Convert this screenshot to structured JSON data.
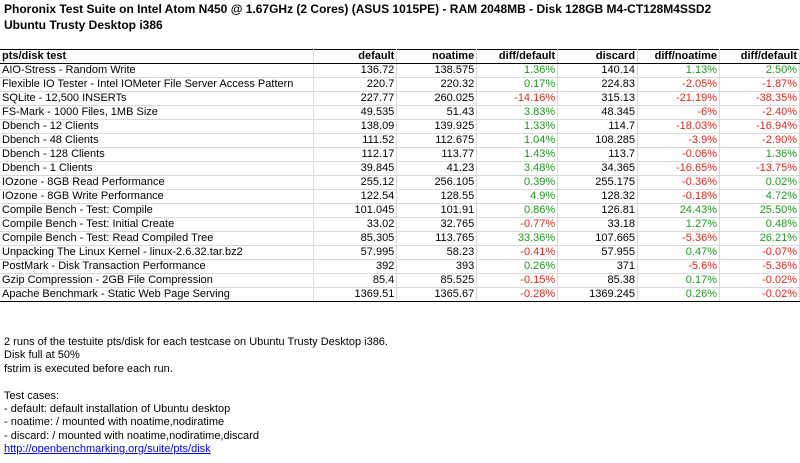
{
  "title_line1": "Phoronix Test Suite on Intel Atom N450 @ 1.67GHz (2 Cores) (ASUS 1015PE) - RAM 2048MB - Disk 128GB M4-CT128M4SSD2",
  "title_line2": "Ubuntu Trusty Desktop i386",
  "colors": {
    "positive": "#1a9a1a",
    "negative": "#e0251b",
    "link": "#0000ee",
    "grid": "#d9d9d9"
  },
  "table": {
    "headers": [
      "pts/disk test",
      "default",
      "noatime",
      "diff/default",
      "discard",
      "diff/noatime",
      "diff/default"
    ],
    "rows": [
      {
        "test": "AIO-Stress - Random Write",
        "default": "136.72",
        "noatime": "138.575",
        "diff1": "1.36%",
        "diff1_sign": "pos",
        "discard": "140.14",
        "diff2": "1.13%",
        "diff2_sign": "pos",
        "diff3": "2.50%",
        "diff3_sign": "pos"
      },
      {
        "test": "Flexible IO Tester - Intel IOMeter File Server Access Pattern",
        "default": "220.7",
        "noatime": "220.32",
        "diff1": "0.17%",
        "diff1_sign": "pos",
        "discard": "224.83",
        "diff2": "-2.05%",
        "diff2_sign": "neg",
        "diff3": "-1.87%",
        "diff3_sign": "neg"
      },
      {
        "test": "SQLite - 12,500 INSERTs",
        "default": "227.77",
        "noatime": "260.025",
        "diff1": "-14.16%",
        "diff1_sign": "neg",
        "discard": "315.13",
        "diff2": "-21.19%",
        "diff2_sign": "neg",
        "diff3": "-38.35%",
        "diff3_sign": "neg"
      },
      {
        "test": "FS-Mark - 1000 Files, 1MB Size",
        "default": "49.535",
        "noatime": "51.43",
        "diff1": "3.83%",
        "diff1_sign": "pos",
        "discard": "48.345",
        "diff2": "-6%",
        "diff2_sign": "neg",
        "diff3": "-2.40%",
        "diff3_sign": "neg"
      },
      {
        "test": "Dbench - 12 Clients",
        "default": "138.09",
        "noatime": "139.925",
        "diff1": "1.33%",
        "diff1_sign": "pos",
        "discard": "114.7",
        "diff2": "-18.03%",
        "diff2_sign": "neg",
        "diff3": "-16.94%",
        "diff3_sign": "neg"
      },
      {
        "test": "Dbench - 48 Clients",
        "default": "111.52",
        "noatime": "112.675",
        "diff1": "1.04%",
        "diff1_sign": "pos",
        "discard": "108.285",
        "diff2": "-3.9%",
        "diff2_sign": "neg",
        "diff3": "-2.90%",
        "diff3_sign": "neg"
      },
      {
        "test": "Dbench - 128 Clients",
        "default": "112.17",
        "noatime": "113.77",
        "diff1": "1.43%",
        "diff1_sign": "pos",
        "discard": "113.7",
        "diff2": "-0.06%",
        "diff2_sign": "neg",
        "diff3": "1.36%",
        "diff3_sign": "pos"
      },
      {
        "test": "Dbench - 1 Clients",
        "default": "39.845",
        "noatime": "41.23",
        "diff1": "3.48%",
        "diff1_sign": "pos",
        "discard": "34.365",
        "diff2": "-16.65%",
        "diff2_sign": "neg",
        "diff3": "-13.75%",
        "diff3_sign": "neg"
      },
      {
        "test": "IOzone - 8GB Read Performance",
        "default": "255.12",
        "noatime": "256.105",
        "diff1": "0.39%",
        "diff1_sign": "pos",
        "discard": "255.175",
        "diff2": "-0.36%",
        "diff2_sign": "neg",
        "diff3": "0.02%",
        "diff3_sign": "pos"
      },
      {
        "test": "IOzone - 8GB Write Performance",
        "default": "122.54",
        "noatime": "128.55",
        "diff1": "4.9%",
        "diff1_sign": "pos",
        "discard": "128.32",
        "diff2": "-0.18%",
        "diff2_sign": "neg",
        "diff3": "4.72%",
        "diff3_sign": "pos"
      },
      {
        "test": "Compile Bench - Test: Compile",
        "default": "101.045",
        "noatime": "101.91",
        "diff1": "0.86%",
        "diff1_sign": "pos",
        "discard": "126.81",
        "diff2": "24.43%",
        "diff2_sign": "pos",
        "diff3": "25.50%",
        "diff3_sign": "pos"
      },
      {
        "test": "Compile Bench - Test: Initial Create",
        "default": "33.02",
        "noatime": "32.765",
        "diff1": "-0.77%",
        "diff1_sign": "neg",
        "discard": "33.18",
        "diff2": "1.27%",
        "diff2_sign": "pos",
        "diff3": "0.48%",
        "diff3_sign": "pos"
      },
      {
        "test": "Compile Bench - Test: Read Compiled Tree",
        "default": "85.305",
        "noatime": "113.765",
        "diff1": "33.36%",
        "diff1_sign": "pos",
        "discard": "107.665",
        "diff2": "-5.36%",
        "diff2_sign": "neg",
        "diff3": "26.21%",
        "diff3_sign": "pos"
      },
      {
        "test": "Unpacking The Linux Kernel - linux-2.6.32.tar.bz2",
        "default": "57.995",
        "noatime": "58.23",
        "diff1": "-0.41%",
        "diff1_sign": "neg",
        "discard": "57.955",
        "diff2": "0.47%",
        "diff2_sign": "pos",
        "diff3": "-0.07%",
        "diff3_sign": "neg"
      },
      {
        "test": "PostMark - Disk Transaction Performance",
        "default": "392",
        "noatime": "393",
        "diff1": "0.26%",
        "diff1_sign": "pos",
        "discard": "371",
        "diff2": "-5.6%",
        "diff2_sign": "neg",
        "diff3": "-5.36%",
        "diff3_sign": "neg"
      },
      {
        "test": "Gzip Compression - 2GB File Compression",
        "default": "85.4",
        "noatime": "85.525",
        "diff1": "-0.15%",
        "diff1_sign": "neg",
        "discard": "85.38",
        "diff2": "0.17%",
        "diff2_sign": "pos",
        "diff3": "-0.02%",
        "diff3_sign": "neg"
      },
      {
        "test": "Apache Benchmark - Static Web Page Serving",
        "default": "1369.51",
        "noatime": "1365.67",
        "diff1": "-0.28%",
        "diff1_sign": "neg",
        "discard": "1369.245",
        "diff2": "0.26%",
        "diff2_sign": "pos",
        "diff3": "-0.02%",
        "diff3_sign": "neg"
      }
    ]
  },
  "notes": {
    "line1": "2 runs of the testuite pts/disk for each testcase on Ubuntu Trusty Desktop i386.",
    "line2": "Disk full at 50%",
    "line3": "fstrim is executed before each run.",
    "line4": "",
    "line5": "Test cases:",
    "line6": "- default: default installation of Ubuntu desktop",
    "line7": "- noatime: / mounted with noatime,nodiratime",
    "line8": "- discard: / mounted with noatime,nodiratime,discard",
    "link": "http://openbenchmarking.org/suite/pts/disk"
  }
}
